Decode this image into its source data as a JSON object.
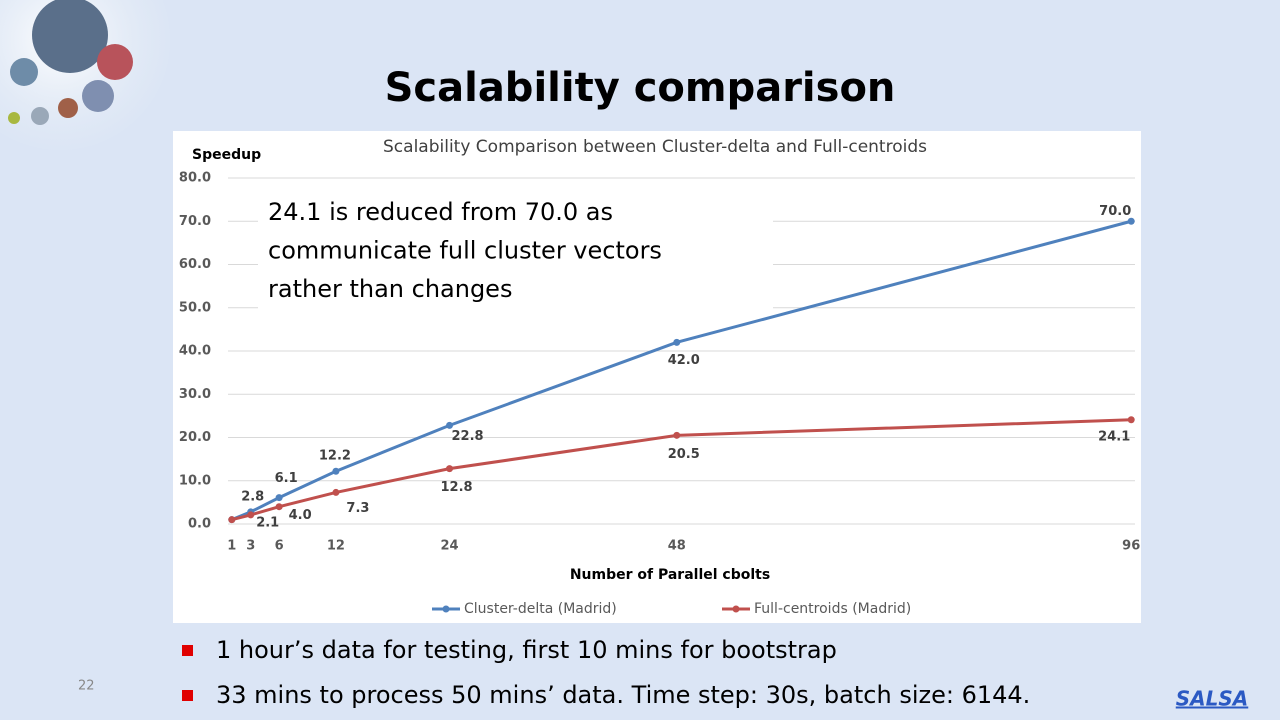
{
  "slide": {
    "title": "Scalability comparison",
    "bullets": [
      "1 hour’s data for testing, first 10 mins for bootstrap",
      "33 mins to process 50 mins’ data. Time step: 30s, batch size: 6144."
    ],
    "page_number": "22",
    "logo": "SALSA"
  },
  "chart_data": {
    "type": "line",
    "title": "Scalability Comparison between Cluster-delta and Full-centroids",
    "y_label": "Speedup",
    "x_label": "Number of Parallel cbolts",
    "annotation": [
      "24.1 is reduced from 70.0 as",
      "communicate full cluster vectors",
      "rather than changes"
    ],
    "x": [
      1,
      3,
      6,
      12,
      24,
      48,
      96
    ],
    "xlim": [
      0.6,
      96.4
    ],
    "xticks": [
      1,
      3,
      6,
      12,
      24,
      48,
      96
    ],
    "ylim": [
      0,
      80
    ],
    "yticks": [
      {
        "value": 0,
        "label": "0.0"
      },
      {
        "value": 10,
        "label": "10.0"
      },
      {
        "value": 20,
        "label": "20.0"
      },
      {
        "value": 30,
        "label": "30.0"
      },
      {
        "value": 40,
        "label": "40.0"
      },
      {
        "value": 50,
        "label": "50.0"
      },
      {
        "value": 60,
        "label": "60.0"
      },
      {
        "value": 70,
        "label": "70.0"
      },
      {
        "value": 80,
        "label": "80.0"
      }
    ],
    "grid": true,
    "legend": "bottom",
    "series": [
      {
        "name": "Cluster-delta (Madrid)",
        "color": "#4f81bd",
        "values": [
          1.0,
          2.8,
          6.1,
          12.2,
          22.8,
          42.0,
          70.0
        ],
        "value_labels": [
          null,
          "2.8",
          "6.1",
          "12.2",
          "22.8",
          "42.0",
          "70.0"
        ]
      },
      {
        "name": "Full-centroids (Madrid)",
        "color": "#c0504d",
        "values": [
          1.0,
          2.1,
          4.0,
          7.3,
          12.8,
          20.5,
          24.1
        ],
        "value_labels": [
          null,
          "2.1",
          "4.0",
          "7.3",
          "12.8",
          "20.5",
          "24.1"
        ]
      }
    ]
  }
}
